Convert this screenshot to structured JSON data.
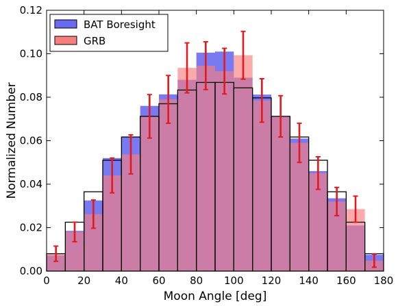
{
  "chart_data": {
    "type": "bar",
    "title": "",
    "xlabel": "Moon Angle [deg]",
    "ylabel": "Normalized Number",
    "xlim": [
      0,
      180
    ],
    "ylim": [
      0,
      0.12
    ],
    "bin_edges": [
      0,
      10,
      20,
      30,
      40,
      50,
      60,
      70,
      80,
      90,
      100,
      110,
      120,
      130,
      140,
      150,
      160,
      170,
      180
    ],
    "x_ticks": [
      "0",
      "20",
      "40",
      "60",
      "80",
      "100",
      "120",
      "140",
      "160",
      "180"
    ],
    "y_ticks": [
      "0.00",
      "0.02",
      "0.04",
      "0.06",
      "0.08",
      "0.10",
      "0.12"
    ],
    "grid": false,
    "legend_position": "top-left",
    "series": [
      {
        "name": "BAT Boresight",
        "color": "#6a6af0",
        "values": [
          0.0072,
          0.0185,
          0.0325,
          0.052,
          0.0617,
          0.076,
          0.0813,
          0.088,
          0.1005,
          0.101,
          0.089,
          0.0812,
          0.0712,
          0.061,
          0.046,
          0.0335,
          0.021,
          0.0075
        ]
      },
      {
        "name": "GRB",
        "color": "#f77f7f",
        "values": [
          0.008,
          0.018,
          0.0262,
          0.044,
          0.0537,
          0.0712,
          0.079,
          0.0935,
          0.0945,
          0.092,
          0.0993,
          0.0785,
          0.0712,
          0.059,
          0.0451,
          0.032,
          0.0285,
          0.0048
        ],
        "errors": [
          0.0035,
          0.0045,
          0.0065,
          0.008,
          0.009,
          0.01,
          0.011,
          0.0115,
          0.011,
          0.0105,
          0.011,
          0.01,
          0.0095,
          0.009,
          0.0075,
          0.0065,
          0.006,
          0.003
        ]
      },
      {
        "name": "",
        "style": "step-outline",
        "color": "#000000",
        "values": [
          0.008,
          0.0225,
          0.0365,
          0.051,
          0.0617,
          0.0712,
          0.077,
          0.0833,
          0.0868,
          0.0868,
          0.0843,
          0.0797,
          0.0712,
          0.0617,
          0.051,
          0.0365,
          0.0225,
          0.008
        ]
      }
    ]
  }
}
